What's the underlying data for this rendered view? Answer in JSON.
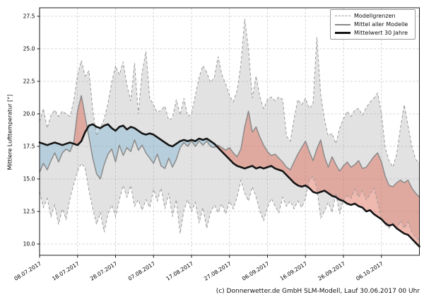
{
  "chart_data": {
    "type": "line",
    "title": "",
    "ylabel": "Mittlere Lufttemperatur [°]",
    "caption": "(c) Donnerwetter.de GmbH SLM-Modell, Lauf 30.06.2017 00 Uhr",
    "grid": true,
    "x_span_days": 100,
    "x_tick_days": [
      0,
      10,
      20,
      30,
      40,
      50,
      60,
      70,
      80,
      90
    ],
    "x_tick_labels": [
      "08.07.2017",
      "18.07.2017",
      "28.07.2017",
      "07.08.2017",
      "17.08.2017",
      "27.08.2017",
      "06.09.2017",
      "16.09.2017",
      "26.09.2017",
      "06.10.2017"
    ],
    "y_ticks": [
      10.0,
      12.5,
      15.0,
      17.5,
      20.0,
      22.5,
      25.0,
      27.5
    ],
    "ylim": [
      9.1,
      28.2
    ],
    "legend": {
      "position": "upper right",
      "items": [
        {
          "label": "Modellgrenzen",
          "style": "dashed-gray"
        },
        {
          "label": "Mittel aller Modelle",
          "style": "solid-gray"
        },
        {
          "label": "Mittelwert 30 Jahre",
          "style": "solid-black-thick"
        }
      ]
    },
    "colors": {
      "envelope_fill": "rgba(173,173,173,0.35)",
      "bound_line": "#9a9a9a",
      "model_mean_line": "#8a8a8a",
      "climate_line": "#141414",
      "warm_fill": "rgba(222,100,80,0.45)",
      "cool_fill": "rgba(130,185,212,0.45)",
      "grid_line": "#c9c9c9",
      "frame": "#000000"
    },
    "series": [
      {
        "name": "Modellgrenzen (obere Grenze)",
        "role": "upper_bound",
        "values": [
          19.4,
          20.4,
          18.9,
          19.9,
          20.3,
          19.8,
          20.2,
          20.0,
          19.8,
          21.0,
          23.0,
          24.1,
          22.9,
          23.3,
          20.3,
          18.3,
          18.9,
          19.6,
          20.8,
          22.4,
          23.7,
          23.0,
          24.0,
          22.2,
          21.0,
          23.9,
          20.0,
          23.2,
          24.8,
          21.2,
          20.7,
          20.1,
          20.3,
          20.6,
          19.5,
          19.7,
          21.1,
          19.9,
          21.2,
          19.8,
          20.0,
          21.4,
          22.8,
          23.7,
          23.2,
          22.4,
          22.8,
          24.4,
          23.0,
          22.3,
          21.4,
          20.9,
          21.8,
          23.8,
          27.3,
          25.0,
          21.2,
          22.9,
          21.3,
          20.4,
          21.1,
          21.3,
          21.0,
          21.3,
          21.1,
          18.3,
          17.9,
          19.6,
          21.1,
          20.7,
          21.2,
          20.4,
          20.8,
          25.9,
          21.5,
          19.6,
          18.3,
          18.5,
          17.7,
          18.9,
          19.6,
          20.2,
          19.8,
          20.3,
          20.4,
          19.9,
          20.5,
          20.9,
          21.2,
          21.6,
          20.0,
          17.4,
          16.4,
          15.9,
          16.9,
          18.9,
          20.7,
          19.1,
          17.5,
          16.5,
          16.2
        ]
      },
      {
        "name": "Modellgrenzen (untere Grenze)",
        "role": "lower_bound",
        "values": [
          14.0,
          12.8,
          13.5,
          12.1,
          13.0,
          11.5,
          12.7,
          11.9,
          13.5,
          14.6,
          15.6,
          16.2,
          15.8,
          14.1,
          12.7,
          11.5,
          12.4,
          10.9,
          12.3,
          13.0,
          12.1,
          13.4,
          14.5,
          13.6,
          14.5,
          12.9,
          13.4,
          12.6,
          13.4,
          12.8,
          14.2,
          13.3,
          14.3,
          12.7,
          13.9,
          12.1,
          13.4,
          10.8,
          12.6,
          13.4,
          12.5,
          13.2,
          11.6,
          12.8,
          11.2,
          12.4,
          13.0,
          12.4,
          13.1,
          12.3,
          13.3,
          12.7,
          13.6,
          14.9,
          13.9,
          13.3,
          14.4,
          13.6,
          12.5,
          11.8,
          12.8,
          13.5,
          12.9,
          12.4,
          13.6,
          12.9,
          13.3,
          12.7,
          13.3,
          12.8,
          13.5,
          14.9,
          15.2,
          14.3,
          12.0,
          12.5,
          13.2,
          12.4,
          13.9,
          12.3,
          13.4,
          13.7,
          13.5,
          14.2,
          13.6,
          14.1,
          13.4,
          13.8,
          14.3,
          13.2,
          11.9,
          11.5,
          11.2,
          11.6,
          11.1,
          11.8,
          11.2,
          11.7,
          10.9,
          10.5,
          10.3
        ]
      },
      {
        "name": "Mittel aller Modelle",
        "role": "model_mean",
        "values": [
          15.5,
          16.2,
          15.7,
          16.4,
          17.0,
          16.3,
          17.0,
          17.3,
          17.1,
          17.8,
          20.2,
          21.4,
          19.8,
          18.2,
          16.6,
          15.4,
          15.0,
          16.1,
          16.9,
          17.3,
          16.3,
          17.6,
          16.8,
          17.4,
          17.1,
          18.0,
          17.2,
          17.6,
          17.0,
          16.6,
          16.2,
          16.9,
          16.0,
          15.8,
          16.6,
          15.9,
          16.5,
          17.4,
          17.8,
          17.5,
          17.9,
          17.5,
          17.9,
          17.6,
          17.9,
          17.5,
          17.4,
          17.6,
          17.4,
          17.2,
          17.4,
          17.0,
          16.7,
          17.3,
          19.0,
          20.2,
          18.6,
          19.0,
          18.2,
          17.6,
          17.1,
          16.8,
          16.9,
          16.6,
          16.3,
          15.9,
          15.7,
          16.3,
          16.9,
          17.4,
          17.9,
          17.1,
          16.4,
          17.3,
          18.0,
          16.7,
          15.9,
          16.7,
          16.1,
          15.6,
          16.0,
          16.3,
          15.9,
          16.1,
          16.4,
          15.8,
          15.9,
          16.3,
          16.7,
          17.0,
          16.3,
          15.2,
          14.5,
          14.4,
          14.7,
          14.9,
          14.7,
          14.9,
          14.3,
          13.9,
          13.6
        ]
      },
      {
        "name": "Mittelwert 30 Jahre",
        "role": "climate_mean_30y",
        "values": [
          17.8,
          17.7,
          17.6,
          17.7,
          17.8,
          17.7,
          17.6,
          17.7,
          17.8,
          17.7,
          17.6,
          17.9,
          18.6,
          19.1,
          19.2,
          19.0,
          18.9,
          19.1,
          19.2,
          18.9,
          18.7,
          19.0,
          19.1,
          18.8,
          19.0,
          18.9,
          18.7,
          18.5,
          18.4,
          18.5,
          18.4,
          18.2,
          18.0,
          17.8,
          17.6,
          17.5,
          17.7,
          17.9,
          18.0,
          17.9,
          18.0,
          17.9,
          18.1,
          18.0,
          18.1,
          17.9,
          17.7,
          17.4,
          17.1,
          16.8,
          16.5,
          16.2,
          16.0,
          15.9,
          15.8,
          15.9,
          16.0,
          15.8,
          15.9,
          15.8,
          15.9,
          16.0,
          15.8,
          15.7,
          15.6,
          15.3,
          15.0,
          14.7,
          14.5,
          14.4,
          14.5,
          14.3,
          14.0,
          13.9,
          14.0,
          14.1,
          13.9,
          13.7,
          13.6,
          13.4,
          13.3,
          13.1,
          13.0,
          13.1,
          12.9,
          12.8,
          12.5,
          12.6,
          12.3,
          12.1,
          11.9,
          11.6,
          11.4,
          11.5,
          11.2,
          11.0,
          10.8,
          10.7,
          10.4,
          10.1,
          9.8
        ]
      }
    ]
  }
}
